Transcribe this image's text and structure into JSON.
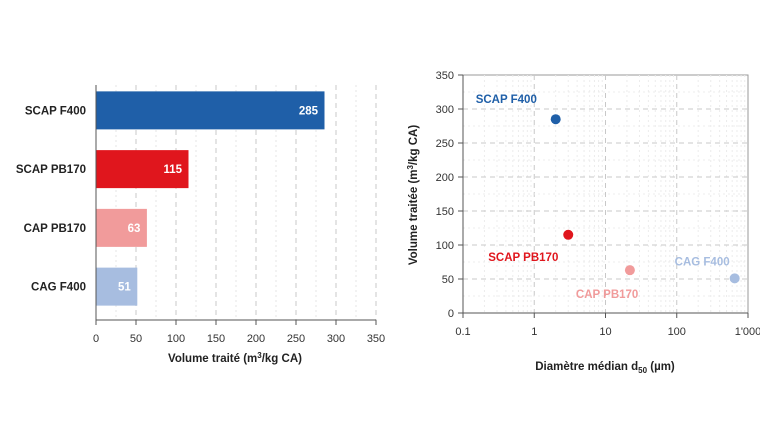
{
  "chart_data": [
    {
      "type": "bar",
      "orientation": "horizontal",
      "categories": [
        "SCAP F400",
        "SCAP PB170",
        "CAP PB170",
        "CAG F400"
      ],
      "values": [
        285,
        115,
        63,
        51
      ],
      "colors": [
        "#1f5fa8",
        "#e0161d",
        "#f19b9b",
        "#a7bde0"
      ],
      "xlabel_main": "Volume traité (m",
      "xlabel_sup": "3",
      "xlabel_tail": "/kg CA)",
      "xlim": [
        0,
        350
      ],
      "xticks": [
        "0",
        "50",
        "100",
        "150",
        "200",
        "250",
        "300",
        "350"
      ],
      "grid": true
    },
    {
      "type": "scatter",
      "points": [
        {
          "label": "SCAP F400",
          "x": 2,
          "y": 285,
          "color": "#1f5fa8"
        },
        {
          "label": "SCAP PB170",
          "x": 3,
          "y": 115,
          "color": "#e0161d"
        },
        {
          "label": "CAP PB170",
          "x": 22,
          "y": 63,
          "color": "#f19b9b"
        },
        {
          "label": "CAG F400",
          "x": 650,
          "y": 51,
          "color": "#a7bde0"
        }
      ],
      "xscale": "log",
      "xlim": [
        0.1,
        1000
      ],
      "ylim": [
        0,
        350
      ],
      "xticks": [
        "0.1",
        "1",
        "10",
        "100",
        "1'000"
      ],
      "yticks": [
        "0",
        "50",
        "100",
        "150",
        "200",
        "250",
        "300",
        "350"
      ],
      "xlabel_main": "Diamètre médian d",
      "xlabel_sub": "50",
      "xlabel_tail": " (µm)",
      "ylabel_main": "Volume traitée (m",
      "ylabel_sup": "3",
      "ylabel_tail": "/kg CA)",
      "grid": true
    }
  ]
}
